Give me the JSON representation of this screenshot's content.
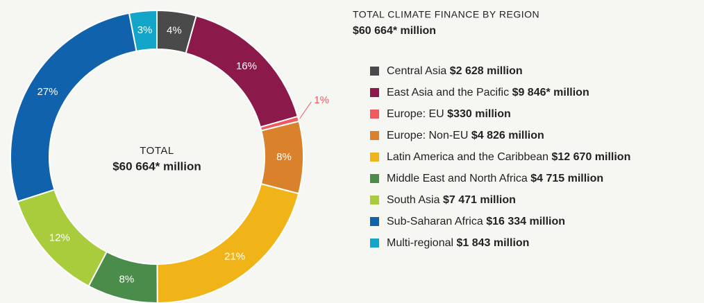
{
  "chart_data": {
    "type": "donut",
    "title": "TOTAL CLIMATE FINANCE BY REGION",
    "subtitle": "$60 664* million",
    "center_label": "TOTAL",
    "center_value": "$60 664* million",
    "categories": [
      "Central Asia",
      "East Asia and the Pacific",
      "Europe: EU",
      "Europe: Non-EU",
      "Latin America and the Caribbean",
      "Middle East and North Africa",
      "South Asia",
      "Sub-Saharan Africa",
      "Multi-regional"
    ],
    "values": [
      2628,
      9846,
      330,
      4826,
      12670,
      4715,
      7471,
      16334,
      1843
    ],
    "value_labels": [
      "$2 628 million",
      "$9 846* million",
      "$330 million",
      "$4 826 million",
      "$12 670 million",
      "$4 715 million",
      "$7 471 million",
      "$16 334 million",
      "$1 843 million"
    ],
    "percentages": [
      4,
      16,
      1,
      8,
      21,
      8,
      12,
      27,
      3
    ],
    "percent_labels": [
      "4%",
      "16%",
      "1%",
      "8%",
      "21%",
      "8%",
      "12%",
      "27%",
      "3%"
    ],
    "colors": [
      "#4a4a4a",
      "#8b1a4a",
      "#ef5a5f",
      "#d9822b",
      "#f0b418",
      "#4a8c4a",
      "#a8cc3c",
      "#0f62ab",
      "#12a5c8"
    ]
  }
}
